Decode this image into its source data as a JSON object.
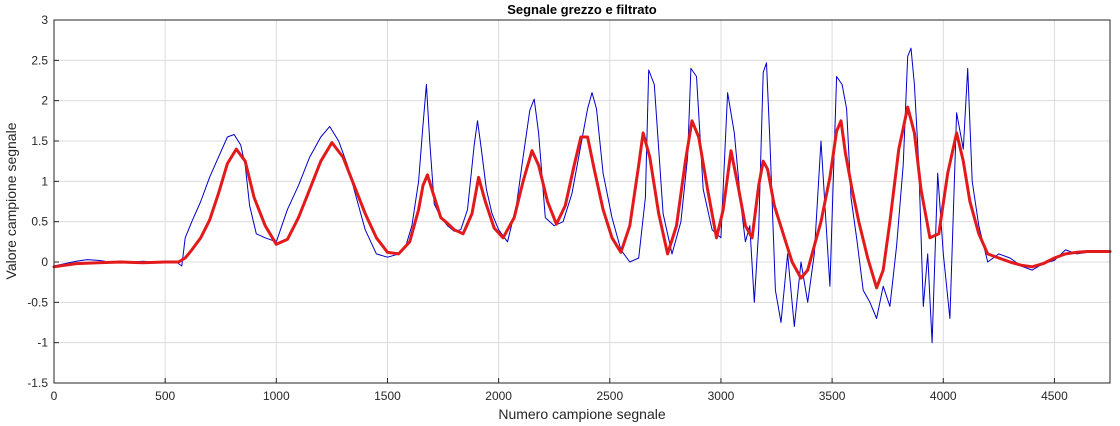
{
  "chart_data": {
    "type": "line",
    "title": "Segnale grezzo e filtrato",
    "xlabel": "Numero campione segnale",
    "ylabel": "Valore campione segnale",
    "xlim": [
      0,
      4750
    ],
    "ylim": [
      -1.5,
      3
    ],
    "x_ticks": [
      0,
      500,
      1000,
      1500,
      2000,
      2500,
      3000,
      3500,
      4000,
      4500
    ],
    "y_ticks": [
      -1.5,
      -1,
      -0.5,
      0,
      0.5,
      1,
      1.5,
      2,
      2.5,
      3
    ],
    "x_tick_labels": [
      "0",
      "500",
      "1000",
      "1500",
      "2000",
      "2500",
      "3000",
      "3500",
      "4000",
      "4500"
    ],
    "y_tick_labels": [
      "-1.5",
      "-1",
      "-0.5",
      "0",
      "0.5",
      "1",
      "1.5",
      "2",
      "2.5",
      "3"
    ],
    "grid": true,
    "legend": "none",
    "series": [
      {
        "color": "#0000cc",
        "x": [
          0,
          50,
          100,
          150,
          200,
          250,
          300,
          350,
          400,
          450,
          500,
          550,
          575,
          590,
          620,
          660,
          700,
          740,
          780,
          810,
          840,
          860,
          880,
          910,
          950,
          1000,
          1050,
          1100,
          1150,
          1200,
          1240,
          1280,
          1320,
          1360,
          1400,
          1450,
          1500,
          1540,
          1580,
          1610,
          1640,
          1660,
          1675,
          1690,
          1710,
          1740,
          1770,
          1800,
          1830,
          1860,
          1890,
          1905,
          1920,
          1945,
          1970,
          2000,
          2040,
          2080,
          2110,
          2140,
          2160,
          2180,
          2210,
          2250,
          2290,
          2330,
          2370,
          2400,
          2420,
          2440,
          2470,
          2510,
          2550,
          2590,
          2630,
          2660,
          2675,
          2700,
          2740,
          2780,
          2820,
          2850,
          2865,
          2890,
          2920,
          2960,
          3000,
          3030,
          3060,
          3090,
          3110,
          3130,
          3150,
          3170,
          3190,
          3205,
          3220,
          3245,
          3270,
          3300,
          3330,
          3360,
          3390,
          3420,
          3450,
          3490,
          3520,
          3545,
          3565,
          3585,
          3610,
          3640,
          3670,
          3700,
          3730,
          3760,
          3790,
          3820,
          3840,
          3855,
          3870,
          3890,
          3910,
          3930,
          3950,
          3975,
          4000,
          4030,
          4060,
          4090,
          4110,
          4130,
          4160,
          4200,
          4250,
          4300,
          4350,
          4400,
          4450,
          4500,
          4550,
          4600,
          4650,
          4700,
          4750
        ],
        "y": [
          -0.05,
          -0.02,
          0.01,
          0.03,
          0.02,
          0.0,
          0.01,
          0.0,
          0.01,
          0.0,
          0.0,
          0.0,
          -0.05,
          0.3,
          0.5,
          0.75,
          1.05,
          1.3,
          1.55,
          1.58,
          1.45,
          1.2,
          0.7,
          0.35,
          0.3,
          0.25,
          0.65,
          0.95,
          1.3,
          1.55,
          1.68,
          1.5,
          1.2,
          0.8,
          0.4,
          0.1,
          0.06,
          0.09,
          0.18,
          0.45,
          1.0,
          1.7,
          2.2,
          1.5,
          0.72,
          0.55,
          0.45,
          0.38,
          0.4,
          0.65,
          1.45,
          1.75,
          1.45,
          0.9,
          0.6,
          0.4,
          0.25,
          0.7,
          1.3,
          1.88,
          2.02,
          1.6,
          0.55,
          0.45,
          0.5,
          0.85,
          1.45,
          1.9,
          2.1,
          1.9,
          1.1,
          0.55,
          0.15,
          0.0,
          0.05,
          0.8,
          2.38,
          2.2,
          0.6,
          0.1,
          0.5,
          1.3,
          2.4,
          2.3,
          0.9,
          0.4,
          0.3,
          2.1,
          1.6,
          0.7,
          0.25,
          0.45,
          -0.5,
          0.4,
          2.35,
          2.47,
          1.5,
          -0.35,
          -0.75,
          0.1,
          -0.8,
          0.0,
          -0.5,
          0.1,
          1.5,
          -0.3,
          2.3,
          2.2,
          1.9,
          0.8,
          0.3,
          -0.35,
          -0.5,
          -0.7,
          -0.3,
          -0.55,
          0.2,
          1.2,
          2.55,
          2.65,
          2.2,
          1.2,
          -0.55,
          0.1,
          -1.0,
          1.1,
          0.1,
          -0.7,
          1.85,
          1.4,
          2.4,
          1.0,
          0.45,
          0.0,
          0.1,
          0.05,
          -0.05,
          -0.1,
          -0.02,
          0.02,
          0.15,
          0.1,
          0.12,
          0.13,
          0.14
        ]
      },
      {
        "color": "#e31a1c",
        "x": [
          0,
          100,
          200,
          300,
          400,
          500,
          560,
          590,
          620,
          660,
          700,
          740,
          780,
          820,
          860,
          900,
          950,
          1000,
          1050,
          1100,
          1150,
          1200,
          1250,
          1300,
          1350,
          1400,
          1450,
          1500,
          1550,
          1600,
          1640,
          1660,
          1680,
          1700,
          1740,
          1770,
          1800,
          1840,
          1880,
          1910,
          1940,
          1980,
          2020,
          2070,
          2110,
          2150,
          2180,
          2220,
          2260,
          2300,
          2340,
          2370,
          2400,
          2430,
          2470,
          2510,
          2550,
          2590,
          2630,
          2650,
          2680,
          2720,
          2760,
          2800,
          2840,
          2870,
          2900,
          2940,
          2980,
          3010,
          3045,
          3080,
          3110,
          3140,
          3170,
          3190,
          3210,
          3240,
          3280,
          3320,
          3360,
          3390,
          3420,
          3450,
          3490,
          3520,
          3540,
          3560,
          3590,
          3620,
          3660,
          3700,
          3730,
          3760,
          3800,
          3840,
          3870,
          3900,
          3940,
          3980,
          4020,
          4060,
          4090,
          4120,
          4160,
          4200,
          4250,
          4300,
          4350,
          4400,
          4450,
          4500,
          4550,
          4600,
          4650,
          4700,
          4750
        ],
        "y": [
          -0.06,
          -0.02,
          -0.01,
          0.0,
          -0.01,
          0.0,
          0.0,
          0.05,
          0.15,
          0.3,
          0.52,
          0.85,
          1.22,
          1.4,
          1.25,
          0.8,
          0.45,
          0.22,
          0.28,
          0.55,
          0.9,
          1.25,
          1.48,
          1.3,
          0.95,
          0.6,
          0.3,
          0.12,
          0.1,
          0.25,
          0.65,
          0.95,
          1.08,
          0.9,
          0.55,
          0.48,
          0.4,
          0.35,
          0.6,
          1.05,
          0.75,
          0.42,
          0.3,
          0.55,
          1.0,
          1.38,
          1.2,
          0.75,
          0.47,
          0.7,
          1.2,
          1.55,
          1.55,
          1.15,
          0.65,
          0.3,
          0.12,
          0.45,
          1.2,
          1.6,
          1.3,
          0.6,
          0.1,
          0.45,
          1.25,
          1.75,
          1.55,
          0.9,
          0.3,
          0.65,
          1.38,
          0.9,
          0.45,
          0.3,
          0.95,
          1.25,
          1.15,
          0.7,
          0.35,
          0.0,
          -0.2,
          -0.1,
          0.2,
          0.5,
          1.05,
          1.62,
          1.75,
          1.35,
          0.9,
          0.5,
          0.05,
          -0.32,
          -0.1,
          0.5,
          1.4,
          1.92,
          1.6,
          0.9,
          0.3,
          0.35,
          1.1,
          1.6,
          1.25,
          0.75,
          0.35,
          0.1,
          0.05,
          0.0,
          -0.04,
          -0.06,
          -0.02,
          0.05,
          0.1,
          0.12,
          0.13,
          0.13,
          0.13
        ]
      }
    ]
  }
}
